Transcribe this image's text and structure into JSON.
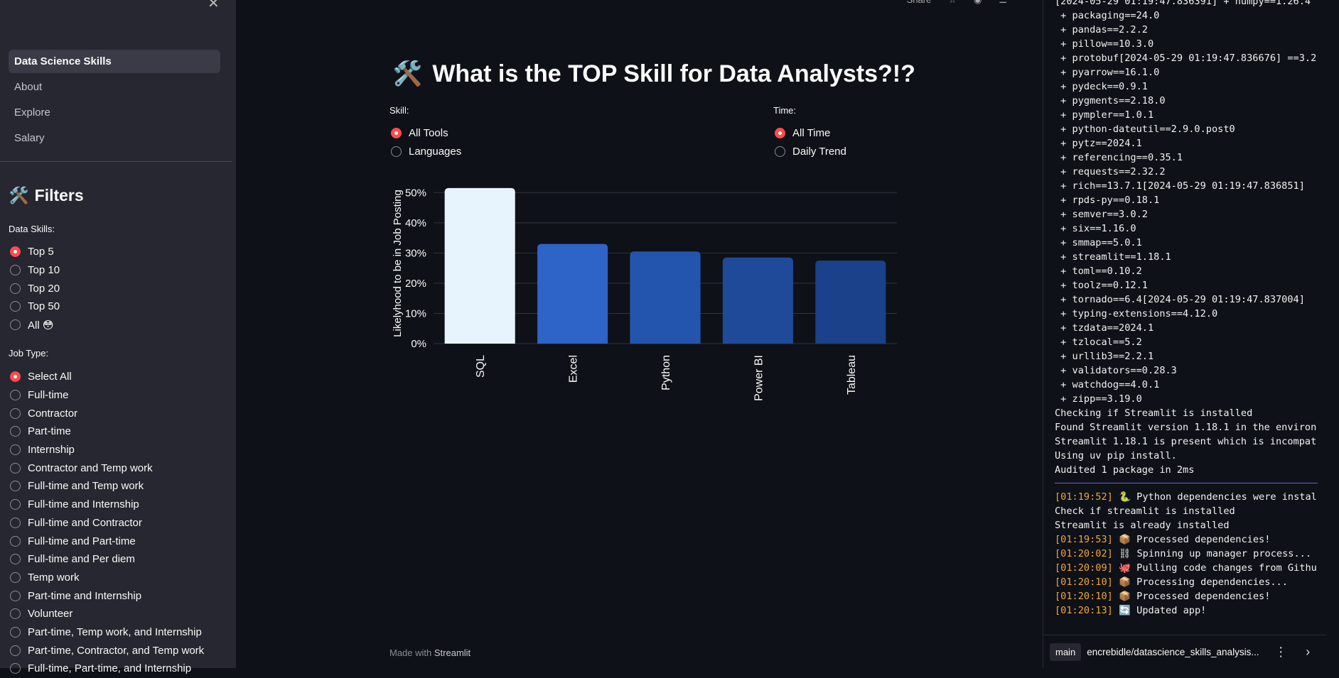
{
  "sidebar": {
    "nav": [
      {
        "label": "Data Science Skills",
        "active": true
      },
      {
        "label": "About",
        "active": false
      },
      {
        "label": "Explore",
        "active": false
      },
      {
        "label": "Salary",
        "active": false
      }
    ],
    "filters_title": "Filters",
    "filters_emoji": "🛠️",
    "data_skills": {
      "label": "Data Skills:",
      "options": [
        "Top 5",
        "Top 10",
        "Top 20",
        "Top 50",
        "All 😳"
      ],
      "selected": 0
    },
    "job_type": {
      "label": "Job Type:",
      "options": [
        "Select All",
        "Full-time",
        "Contractor",
        "Part-time",
        "Internship",
        "Contractor and Temp work",
        "Full-time and Temp work",
        "Full-time and Internship",
        "Full-time and Contractor",
        "Full-time and Part-time",
        "Full-time and Per diem",
        "Temp work",
        "Part-time and Internship",
        "Volunteer",
        "Part-time, Temp work, and Internship",
        "Part-time, Contractor, and Temp work",
        "Full-time, Part-time, and Internship"
      ],
      "selected": 0
    }
  },
  "main": {
    "title_emoji": "🛠️",
    "title": "What is the TOP Skill for Data Analysts?!?",
    "skill": {
      "label": "Skill:",
      "options": [
        "All Tools",
        "Languages"
      ],
      "selected": 0
    },
    "time": {
      "label": "Time:",
      "options": [
        "All Time",
        "Daily Trend"
      ],
      "selected": 0
    },
    "footer_prefix": "Made with ",
    "footer_brand": "Streamlit"
  },
  "chart_data": {
    "type": "bar",
    "categories": [
      "SQL",
      "Excel",
      "Python",
      "Power BI",
      "Tableau"
    ],
    "values": [
      51.5,
      33,
      30.5,
      28.5,
      27.5
    ],
    "ylabel": "Likelyhood to be in Job Posting",
    "yticks": [
      "0%",
      "10%",
      "20%",
      "30%",
      "40%",
      "50%"
    ],
    "ylim": [
      0,
      55
    ],
    "colors": [
      "#e8f4fd",
      "#2e63c7",
      "#2355af",
      "#1e4a99",
      "#1a418a"
    ],
    "grid": true
  },
  "console": {
    "lines": [
      {
        "t": "",
        "text": "[2024-05-29 01:19:47.836391] + numpy==1.26.4"
      },
      {
        "t": "",
        "text": " + packaging==24.0"
      },
      {
        "t": "",
        "text": " + pandas==2.2.2"
      },
      {
        "t": "",
        "text": " + pillow==10.3.0"
      },
      {
        "t": "",
        "text": " + protobuf[2024-05-29 01:19:47.836676] ==3.2"
      },
      {
        "t": "",
        "text": " + pyarrow==16.1.0"
      },
      {
        "t": "",
        "text": " + pydeck==0.9.1"
      },
      {
        "t": "",
        "text": " + pygments==2.18.0"
      },
      {
        "t": "",
        "text": " + pympler==1.0.1"
      },
      {
        "t": "",
        "text": " + python-dateutil==2.9.0.post0"
      },
      {
        "t": "",
        "text": " + pytz==2024.1"
      },
      {
        "t": "",
        "text": " + referencing==0.35.1"
      },
      {
        "t": "",
        "text": " + requests==2.32.2"
      },
      {
        "t": "",
        "text": " + rich==13.7.1[2024-05-29 01:19:47.836851]"
      },
      {
        "t": "",
        "text": " + rpds-py==0.18.1"
      },
      {
        "t": "",
        "text": " + semver==3.0.2"
      },
      {
        "t": "",
        "text": " + six==1.16.0"
      },
      {
        "t": "",
        "text": " + smmap==5.0.1"
      },
      {
        "t": "",
        "text": " + streamlit==1.18.1"
      },
      {
        "t": "",
        "text": " + toml==0.10.2"
      },
      {
        "t": "",
        "text": " + toolz==0.12.1"
      },
      {
        "t": "",
        "text": " + tornado==6.4[2024-05-29 01:19:47.837004]"
      },
      {
        "t": "",
        "text": " + typing-extensions==4.12.0"
      },
      {
        "t": "",
        "text": " + tzdata==2024.1"
      },
      {
        "t": "",
        "text": " + tzlocal==5.2"
      },
      {
        "t": "",
        "text": " + urllib3==2.2.1"
      },
      {
        "t": "",
        "text": " + validators==0.28.3"
      },
      {
        "t": "",
        "text": " + watchdog==4.0.1"
      },
      {
        "t": "",
        "text": " + zipp==3.19.0"
      },
      {
        "t": "",
        "text": "Checking if Streamlit is installed"
      },
      {
        "t": "",
        "text": "Found Streamlit version 1.18.1 in the environ"
      },
      {
        "t": "",
        "text": "Streamlit 1.18.1 is present which is incompat"
      },
      {
        "t": "",
        "text": "Using uv pip install."
      },
      {
        "t": "",
        "text": "Audited 1 package in 2ms"
      }
    ],
    "lines2": [
      {
        "t": "[01:19:52]",
        "text": " 🐍 Python dependencies were instal"
      },
      {
        "t": "",
        "text": "Check if streamlit is installed"
      },
      {
        "t": "",
        "text": "Streamlit is already installed"
      },
      {
        "t": "[01:19:53]",
        "text": " 📦 Processed dependencies!"
      },
      {
        "t": "[01:20:02]",
        "text": " ⛓ Spinning up manager process..."
      },
      {
        "t": "[01:20:09]",
        "text": " 🐙 Pulling code changes from Githu"
      },
      {
        "t": "[01:20:10]",
        "text": " 📦 Processing dependencies..."
      },
      {
        "t": "[01:20:10]",
        "text": " 📦 Processed dependencies!"
      },
      {
        "t": "[01:20:13]",
        "text": " 🔄 Updated app!"
      }
    ],
    "branch": "main",
    "repo": "encrebidle/datascience_skills_analysis..."
  },
  "topbar": {
    "share": "Share"
  }
}
